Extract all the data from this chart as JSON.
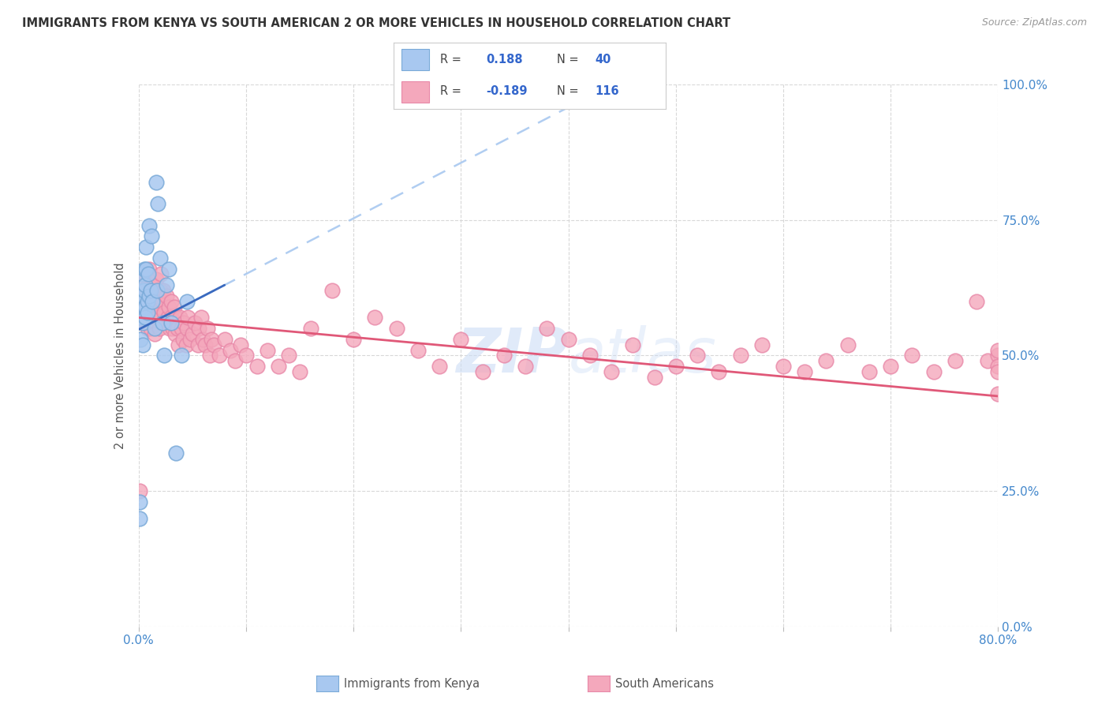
{
  "title": "IMMIGRANTS FROM KENYA VS SOUTH AMERICAN 2 OR MORE VEHICLES IN HOUSEHOLD CORRELATION CHART",
  "source": "Source: ZipAtlas.com",
  "ylabel": "2 or more Vehicles in Household",
  "xmin": 0.0,
  "xmax": 0.8,
  "ymin": 0.0,
  "ymax": 1.0,
  "legend_kenya_R": "0.188",
  "legend_kenya_N": "40",
  "legend_south_R": "-0.189",
  "legend_south_N": "116",
  "legend_label_kenya": "Immigrants from Kenya",
  "legend_label_south": "South Americans",
  "kenya_color": "#a8c8f0",
  "south_color": "#f4a8bc",
  "kenya_edge": "#7aaad8",
  "south_edge": "#e888a8",
  "trend_kenya_color": "#3a6abf",
  "trend_south_color": "#e05878",
  "dash_color": "#a8c8f0",
  "watermark_color": "#ccddf5",
  "background": "#ffffff",
  "grid_color": "#d8d8d8",
  "ytick_vals": [
    0.0,
    0.25,
    0.5,
    0.75,
    1.0
  ],
  "ytick_labels": [
    "0.0%",
    "25.0%",
    "50.0%",
    "75.0%",
    "100.0%"
  ],
  "xtick_vals": [
    0.0,
    0.1,
    0.2,
    0.3,
    0.4,
    0.5,
    0.6,
    0.7,
    0.8
  ],
  "xtick_show": [
    "0.0%",
    "",
    "",
    "",
    "",
    "",
    "",
    "",
    "80.0%"
  ],
  "kenya_x": [
    0.001,
    0.001,
    0.002,
    0.002,
    0.002,
    0.003,
    0.003,
    0.003,
    0.004,
    0.004,
    0.004,
    0.005,
    0.005,
    0.005,
    0.006,
    0.006,
    0.006,
    0.007,
    0.007,
    0.008,
    0.008,
    0.009,
    0.01,
    0.01,
    0.011,
    0.012,
    0.013,
    0.015,
    0.016,
    0.017,
    0.018,
    0.02,
    0.022,
    0.024,
    0.026,
    0.028,
    0.03,
    0.035,
    0.04,
    0.045
  ],
  "kenya_y": [
    0.2,
    0.23,
    0.57,
    0.6,
    0.53,
    0.59,
    0.62,
    0.65,
    0.56,
    0.6,
    0.52,
    0.59,
    0.62,
    0.66,
    0.59,
    0.63,
    0.57,
    0.66,
    0.7,
    0.6,
    0.58,
    0.65,
    0.61,
    0.74,
    0.62,
    0.72,
    0.6,
    0.55,
    0.82,
    0.62,
    0.78,
    0.68,
    0.56,
    0.5,
    0.63,
    0.66,
    0.56,
    0.32,
    0.5,
    0.6
  ],
  "south_x": [
    0.001,
    0.002,
    0.003,
    0.004,
    0.005,
    0.005,
    0.006,
    0.007,
    0.007,
    0.008,
    0.008,
    0.009,
    0.009,
    0.01,
    0.01,
    0.011,
    0.012,
    0.012,
    0.013,
    0.014,
    0.015,
    0.015,
    0.016,
    0.016,
    0.017,
    0.018,
    0.018,
    0.019,
    0.02,
    0.02,
    0.021,
    0.022,
    0.023,
    0.023,
    0.024,
    0.025,
    0.026,
    0.027,
    0.028,
    0.029,
    0.03,
    0.03,
    0.032,
    0.033,
    0.034,
    0.035,
    0.036,
    0.037,
    0.038,
    0.04,
    0.041,
    0.042,
    0.044,
    0.045,
    0.046,
    0.048,
    0.05,
    0.052,
    0.055,
    0.056,
    0.058,
    0.06,
    0.062,
    0.064,
    0.066,
    0.068,
    0.07,
    0.075,
    0.08,
    0.085,
    0.09,
    0.095,
    0.1,
    0.11,
    0.12,
    0.13,
    0.14,
    0.15,
    0.16,
    0.18,
    0.2,
    0.22,
    0.24,
    0.26,
    0.28,
    0.3,
    0.32,
    0.34,
    0.36,
    0.38,
    0.4,
    0.42,
    0.44,
    0.46,
    0.48,
    0.5,
    0.52,
    0.54,
    0.56,
    0.58,
    0.6,
    0.62,
    0.64,
    0.66,
    0.68,
    0.7,
    0.72,
    0.74,
    0.76,
    0.78,
    0.79,
    0.8,
    0.8,
    0.8,
    0.8,
    0.8
  ],
  "south_y": [
    0.25,
    0.62,
    0.64,
    0.6,
    0.65,
    0.57,
    0.62,
    0.58,
    0.56,
    0.61,
    0.55,
    0.63,
    0.58,
    0.66,
    0.6,
    0.55,
    0.63,
    0.59,
    0.63,
    0.57,
    0.54,
    0.6,
    0.64,
    0.59,
    0.57,
    0.61,
    0.57,
    0.55,
    0.62,
    0.59,
    0.65,
    0.6,
    0.56,
    0.62,
    0.58,
    0.56,
    0.61,
    0.57,
    0.59,
    0.55,
    0.6,
    0.57,
    0.55,
    0.59,
    0.54,
    0.57,
    0.55,
    0.52,
    0.57,
    0.55,
    0.53,
    0.56,
    0.52,
    0.55,
    0.57,
    0.53,
    0.54,
    0.56,
    0.52,
    0.55,
    0.57,
    0.53,
    0.52,
    0.55,
    0.5,
    0.53,
    0.52,
    0.5,
    0.53,
    0.51,
    0.49,
    0.52,
    0.5,
    0.48,
    0.51,
    0.48,
    0.5,
    0.47,
    0.55,
    0.62,
    0.53,
    0.57,
    0.55,
    0.51,
    0.48,
    0.53,
    0.47,
    0.5,
    0.48,
    0.55,
    0.53,
    0.5,
    0.47,
    0.52,
    0.46,
    0.48,
    0.5,
    0.47,
    0.5,
    0.52,
    0.48,
    0.47,
    0.49,
    0.52,
    0.47,
    0.48,
    0.5,
    0.47,
    0.49,
    0.6,
    0.49,
    0.5,
    0.48,
    0.51,
    0.47,
    0.43
  ],
  "trend_kenya_x0": 0.0,
  "trend_kenya_x1": 0.08,
  "trend_kenya_y0": 0.548,
  "trend_kenya_y1": 0.63,
  "trend_south_x0": 0.0,
  "trend_south_x1": 0.8,
  "trend_south_y0": 0.57,
  "trend_south_y1": 0.425
}
